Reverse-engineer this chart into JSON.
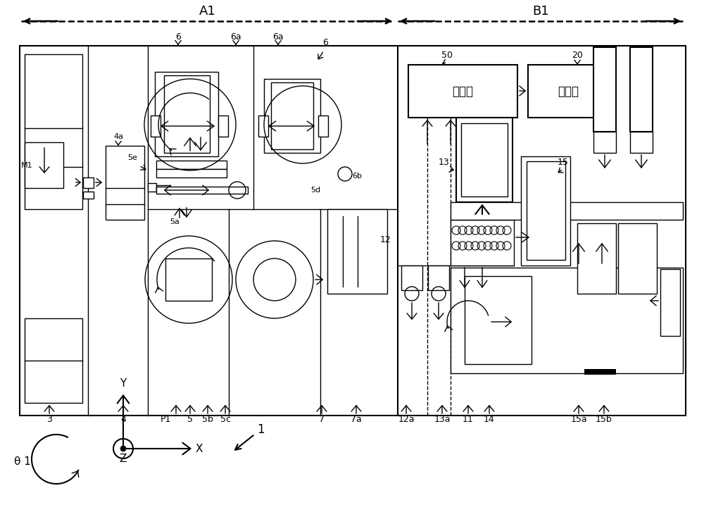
{
  "bg_color": "#ffffff",
  "line_color": "#000000",
  "fig_width": 10.0,
  "fig_height": 7.27,
  "chinese_computer": "计算机",
  "chinese_monitor": "监视器",
  "theta_label": "θ 1"
}
